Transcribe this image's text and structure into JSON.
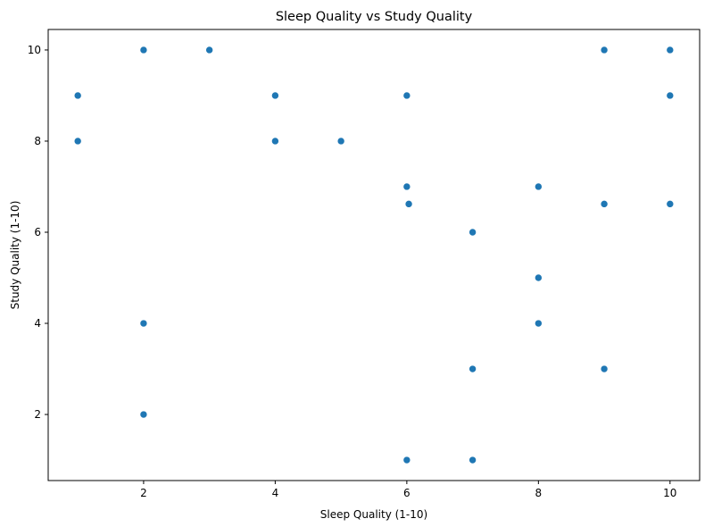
{
  "chart_data": {
    "type": "scatter",
    "title": "Sleep Quality vs Study Quality",
    "xlabel": "Sleep Quality (1-10)",
    "ylabel": "Study Quality (1-10)",
    "xlim": [
      0.55,
      10.45
    ],
    "ylim": [
      0.55,
      10.45
    ],
    "xticks": [
      2,
      4,
      6,
      8,
      10
    ],
    "yticks": [
      2,
      4,
      6,
      8,
      10
    ],
    "grid": false,
    "point_color": "#1f77b4",
    "points": [
      {
        "x": 1,
        "y": 9
      },
      {
        "x": 1,
        "y": 8
      },
      {
        "x": 2,
        "y": 10
      },
      {
        "x": 2,
        "y": 4
      },
      {
        "x": 2,
        "y": 2
      },
      {
        "x": 3,
        "y": 10
      },
      {
        "x": 4,
        "y": 9
      },
      {
        "x": 4,
        "y": 8
      },
      {
        "x": 5,
        "y": 8
      },
      {
        "x": 6,
        "y": 9
      },
      {
        "x": 6,
        "y": 7
      },
      {
        "x": 6.03,
        "y": 6.62
      },
      {
        "x": 6,
        "y": 1
      },
      {
        "x": 7,
        "y": 6
      },
      {
        "x": 7,
        "y": 3
      },
      {
        "x": 7,
        "y": 1
      },
      {
        "x": 8,
        "y": 7
      },
      {
        "x": 8,
        "y": 5
      },
      {
        "x": 8,
        "y": 4
      },
      {
        "x": 9,
        "y": 10
      },
      {
        "x": 9,
        "y": 6.62
      },
      {
        "x": 9,
        "y": 3
      },
      {
        "x": 10,
        "y": 10
      },
      {
        "x": 10,
        "y": 9
      },
      {
        "x": 10,
        "y": 6.62
      }
    ]
  }
}
